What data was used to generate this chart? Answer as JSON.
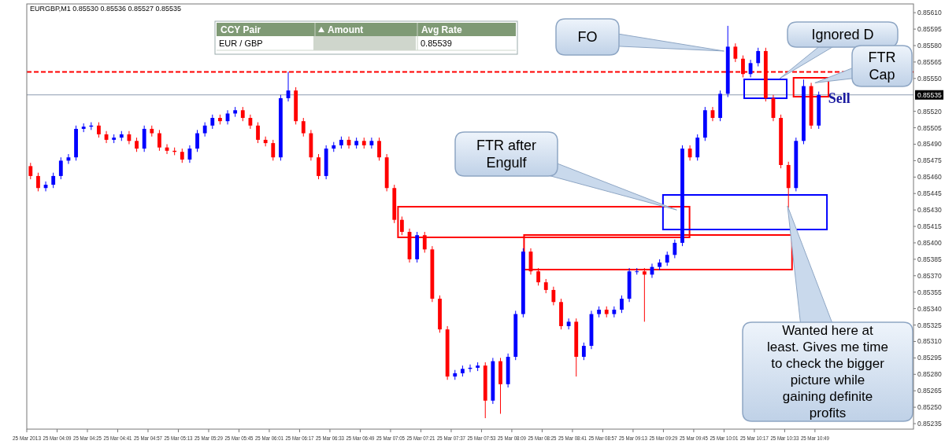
{
  "chart_data": {
    "type": "candlestick",
    "title": "EURGBP,M1  0.85530 0.85536 0.85527 0.85535",
    "x": [
      "2013-03-25T03:55",
      "2013-03-25T03:59",
      "2013-03-25T04:03",
      "2013-03-25T04:07",
      "2013-03-25T04:11",
      "2013-03-25T04:15",
      "2013-03-25T04:19",
      "2013-03-25T04:23",
      "2013-03-25T04:27",
      "2013-03-25T04:31",
      "2013-03-25T04:35",
      "2013-03-25T04:39",
      "2013-03-25T04:43",
      "2013-03-25T04:47",
      "2013-03-25T04:51",
      "2013-03-25T04:55",
      "2013-03-25T04:59",
      "2013-03-25T05:03",
      "2013-03-25T05:07",
      "2013-03-25T05:11",
      "2013-03-25T05:15",
      "2013-03-25T05:19",
      "2013-03-25T05:23",
      "2013-03-25T05:27",
      "2013-03-25T05:31",
      "2013-03-25T05:35",
      "2013-03-25T05:39",
      "2013-03-25T05:43",
      "2013-03-25T05:47",
      "2013-03-25T05:51",
      "2013-03-25T05:55",
      "2013-03-25T05:59",
      "2013-03-25T06:03",
      "2013-03-25T06:07",
      "2013-03-25T06:11",
      "2013-03-25T06:15",
      "2013-03-25T06:19",
      "2013-03-25T06:23",
      "2013-03-25T06:27",
      "2013-03-25T06:31",
      "2013-03-25T06:35",
      "2013-03-25T06:39",
      "2013-03-25T06:43",
      "2013-03-25T06:47",
      "2013-03-25T06:51",
      "2013-03-25T06:55",
      "2013-03-25T06:59",
      "2013-03-25T07:03",
      "2013-03-25T07:07",
      "2013-03-25T07:11",
      "2013-03-25T07:15",
      "2013-03-25T07:19",
      "2013-03-25T07:23",
      "2013-03-25T07:27",
      "2013-03-25T07:31",
      "2013-03-25T07:35",
      "2013-03-25T07:39",
      "2013-03-25T07:43",
      "2013-03-25T07:47",
      "2013-03-25T07:51",
      "2013-03-25T07:55",
      "2013-03-25T07:59",
      "2013-03-25T08:03",
      "2013-03-25T08:07",
      "2013-03-25T08:11",
      "2013-03-25T08:15",
      "2013-03-25T08:19",
      "2013-03-25T08:23",
      "2013-03-25T08:27",
      "2013-03-25T08:31",
      "2013-03-25T08:35",
      "2013-03-25T08:39",
      "2013-03-25T08:43",
      "2013-03-25T08:47",
      "2013-03-25T08:51",
      "2013-03-25T08:55",
      "2013-03-25T08:59",
      "2013-03-25T09:03",
      "2013-03-25T09:07",
      "2013-03-25T09:11",
      "2013-03-25T09:15",
      "2013-03-25T09:19",
      "2013-03-25T09:23",
      "2013-03-25T09:27",
      "2013-03-25T09:31",
      "2013-03-25T09:35",
      "2013-03-25T09:39",
      "2013-03-25T09:43",
      "2013-03-25T09:47",
      "2013-03-25T09:51",
      "2013-03-25T09:55",
      "2013-03-25T09:59",
      "2013-03-25T10:03",
      "2013-03-25T10:07",
      "2013-03-25T10:11",
      "2013-03-25T10:15",
      "2013-03-25T10:19",
      "2013-03-25T10:23",
      "2013-03-25T10:27",
      "2013-03-25T10:31",
      "2013-03-25T10:35",
      "2013-03-25T10:39",
      "2013-03-25T10:43",
      "2013-03-25T10:47",
      "2013-03-25T10:51"
    ],
    "ohlc": [
      [
        0.8547,
        0.85473,
        0.85458,
        0.85461
      ],
      [
        0.85461,
        0.85464,
        0.85447,
        0.8545
      ],
      [
        0.8545,
        0.85456,
        0.85447,
        0.85453
      ],
      [
        0.85453,
        0.85464,
        0.8545,
        0.85461
      ],
      [
        0.85461,
        0.85478,
        0.85458,
        0.85475
      ],
      [
        0.85475,
        0.85481,
        0.85472,
        0.85478
      ],
      [
        0.85478,
        0.85507,
        0.85475,
        0.85504
      ],
      [
        0.85504,
        0.85509,
        0.85501,
        0.85506
      ],
      [
        0.85506,
        0.8551,
        0.85503,
        0.85507
      ],
      [
        0.85507,
        0.8551,
        0.85496,
        0.85499
      ],
      [
        0.85499,
        0.85502,
        0.85491,
        0.85494
      ],
      [
        0.85494,
        0.85499,
        0.85491,
        0.85496
      ],
      [
        0.85496,
        0.85502,
        0.85493,
        0.85499
      ],
      [
        0.85499,
        0.85502,
        0.8549,
        0.85493
      ],
      [
        0.85493,
        0.85496,
        0.85483,
        0.85486
      ],
      [
        0.85486,
        0.85507,
        0.85483,
        0.85504
      ],
      [
        0.85504,
        0.85507,
        0.85497,
        0.855
      ],
      [
        0.855,
        0.85503,
        0.85484,
        0.85487
      ],
      [
        0.85487,
        0.8549,
        0.85481,
        0.85484
      ],
      [
        0.85484,
        0.85487,
        0.8548,
        0.85483
      ],
      [
        0.85483,
        0.85486,
        0.85473,
        0.85476
      ],
      [
        0.85476,
        0.85489,
        0.85473,
        0.85486
      ],
      [
        0.85486,
        0.85503,
        0.85483,
        0.855
      ],
      [
        0.855,
        0.8551,
        0.85497,
        0.85507
      ],
      [
        0.85507,
        0.85517,
        0.85504,
        0.85514
      ],
      [
        0.85514,
        0.85517,
        0.85508,
        0.85511
      ],
      [
        0.85511,
        0.85521,
        0.85508,
        0.85518
      ],
      [
        0.85518,
        0.85524,
        0.85515,
        0.85521
      ],
      [
        0.85521,
        0.85524,
        0.85511,
        0.85514
      ],
      [
        0.85514,
        0.85517,
        0.85504,
        0.85507
      ],
      [
        0.85507,
        0.8551,
        0.85491,
        0.85494
      ],
      [
        0.85494,
        0.85497,
        0.85488,
        0.85491
      ],
      [
        0.85491,
        0.85494,
        0.85475,
        0.85478
      ],
      [
        0.85478,
        0.85535,
        0.85475,
        0.85532
      ],
      [
        0.85532,
        0.85556,
        0.85529,
        0.85539
      ],
      [
        0.85539,
        0.85542,
        0.85508,
        0.85511
      ],
      [
        0.85511,
        0.85514,
        0.85497,
        0.855
      ],
      [
        0.855,
        0.85503,
        0.85475,
        0.85478
      ],
      [
        0.85478,
        0.85481,
        0.85458,
        0.85461
      ],
      [
        0.85461,
        0.85489,
        0.85458,
        0.85486
      ],
      [
        0.85486,
        0.85492,
        0.85483,
        0.85489
      ],
      [
        0.85489,
        0.85497,
        0.85486,
        0.85494
      ],
      [
        0.85494,
        0.85497,
        0.85486,
        0.85489
      ],
      [
        0.85489,
        0.85496,
        0.85486,
        0.85493
      ],
      [
        0.85493,
        0.85496,
        0.85486,
        0.85489
      ],
      [
        0.85489,
        0.85496,
        0.85486,
        0.85493
      ],
      [
        0.85493,
        0.85496,
        0.85475,
        0.85478
      ],
      [
        0.85478,
        0.85481,
        0.85447,
        0.8545
      ],
      [
        0.8545,
        0.85453,
        0.85418,
        0.85421
      ],
      [
        0.85421,
        0.85424,
        0.85407,
        0.8541
      ],
      [
        0.8541,
        0.85413,
        0.85382,
        0.85385
      ],
      [
        0.85385,
        0.8541,
        0.85382,
        0.85407
      ],
      [
        0.85407,
        0.8541,
        0.85391,
        0.85394
      ],
      [
        0.85394,
        0.85397,
        0.85346,
        0.85349
      ],
      [
        0.85349,
        0.85352,
        0.85318,
        0.85321
      ],
      [
        0.85321,
        0.85324,
        0.85275,
        0.85278
      ],
      [
        0.85278,
        0.85284,
        0.85275,
        0.85281
      ],
      [
        0.85281,
        0.85288,
        0.85278,
        0.85285
      ],
      [
        0.85285,
        0.85289,
        0.85282,
        0.85286
      ],
      [
        0.85286,
        0.85291,
        0.85283,
        0.85288
      ],
      [
        0.85288,
        0.85291,
        0.8524,
        0.85256
      ],
      [
        0.85256,
        0.85295,
        0.85253,
        0.85292
      ],
      [
        0.85292,
        0.85295,
        0.85244,
        0.85271
      ],
      [
        0.85271,
        0.85299,
        0.85268,
        0.85296
      ],
      [
        0.85296,
        0.85338,
        0.85293,
        0.85335
      ],
      [
        0.85335,
        0.85395,
        0.85332,
        0.85392
      ],
      [
        0.85392,
        0.85395,
        0.85371,
        0.85374
      ],
      [
        0.85374,
        0.85377,
        0.85361,
        0.85364
      ],
      [
        0.85364,
        0.85367,
        0.85354,
        0.85357
      ],
      [
        0.85357,
        0.8536,
        0.85343,
        0.85346
      ],
      [
        0.85346,
        0.85349,
        0.85321,
        0.85324
      ],
      [
        0.85324,
        0.85331,
        0.85321,
        0.85328
      ],
      [
        0.85328,
        0.85331,
        0.85278,
        0.85296
      ],
      [
        0.85296,
        0.85309,
        0.85293,
        0.85306
      ],
      [
        0.85306,
        0.85338,
        0.85303,
        0.85335
      ],
      [
        0.85335,
        0.85342,
        0.85332,
        0.85339
      ],
      [
        0.85339,
        0.85342,
        0.85332,
        0.85335
      ],
      [
        0.85335,
        0.85342,
        0.85332,
        0.85339
      ],
      [
        0.85339,
        0.85352,
        0.85336,
        0.85349
      ],
      [
        0.85349,
        0.85377,
        0.85346,
        0.85374
      ],
      [
        0.85374,
        0.85377,
        0.85371,
        0.85374
      ],
      [
        0.85374,
        0.85377,
        0.85328,
        0.85371
      ],
      [
        0.85371,
        0.85381,
        0.85368,
        0.85378
      ],
      [
        0.85378,
        0.85385,
        0.85375,
        0.85382
      ],
      [
        0.85382,
        0.85392,
        0.85379,
        0.85389
      ],
      [
        0.85389,
        0.85403,
        0.85386,
        0.854
      ],
      [
        0.854,
        0.85489,
        0.85397,
        0.85486
      ],
      [
        0.85486,
        0.85489,
        0.85475,
        0.85478
      ],
      [
        0.85478,
        0.85499,
        0.85475,
        0.85496
      ],
      [
        0.85496,
        0.85524,
        0.85493,
        0.85521
      ],
      [
        0.85521,
        0.85524,
        0.85511,
        0.85514
      ],
      [
        0.85514,
        0.85539,
        0.85511,
        0.85536
      ],
      [
        0.85536,
        0.85598,
        0.85533,
        0.85579
      ],
      [
        0.85579,
        0.85582,
        0.85565,
        0.85568
      ],
      [
        0.85568,
        0.85571,
        0.85551,
        0.85554
      ],
      [
        0.85554,
        0.85567,
        0.85551,
        0.85564
      ],
      [
        0.85564,
        0.85578,
        0.85561,
        0.85575
      ],
      [
        0.85575,
        0.85578,
        0.85529,
        0.85532
      ],
      [
        0.85532,
        0.85535,
        0.85511,
        0.85514
      ],
      [
        0.85514,
        0.85517,
        0.85468,
        0.85471
      ],
      [
        0.85471,
        0.85474,
        0.85432,
        0.8545
      ],
      [
        0.8545,
        0.85496,
        0.85447,
        0.85493
      ],
      [
        0.85493,
        0.85549,
        0.8549,
        0.85543
      ],
      [
        0.85543,
        0.85546,
        0.85504,
        0.85507
      ],
      [
        0.85507,
        0.85538,
        0.85504,
        0.85535
      ]
    ],
    "colors": [
      "#ff0000",
      "#ff0000",
      "#0000ff",
      "#0000ff",
      "#0000ff",
      "#0000ff",
      "#0000ff",
      "#0000ff",
      "#0000ff",
      "#ff0000",
      "#ff0000",
      "#0000ff",
      "#0000ff",
      "#ff0000",
      "#ff0000",
      "#0000ff",
      "#ff0000",
      "#ff0000",
      "#ff0000",
      "#ff0000",
      "#ff0000",
      "#0000ff",
      "#0000ff",
      "#0000ff",
      "#0000ff",
      "#ff0000",
      "#0000ff",
      "#0000ff",
      "#ff0000",
      "#ff0000",
      "#ff0000",
      "#ff0000",
      "#ff0000",
      "#0000ff",
      "#0000ff",
      "#ff0000",
      "#ff0000",
      "#ff0000",
      "#ff0000",
      "#0000ff",
      "#0000ff",
      "#0000ff",
      "#ff0000",
      "#0000ff",
      "#ff0000",
      "#0000ff",
      "#ff0000",
      "#ff0000",
      "#ff0000",
      "#ff0000",
      "#ff0000",
      "#0000ff",
      "#ff0000",
      "#ff0000",
      "#ff0000",
      "#ff0000",
      "#0000ff",
      "#0000ff",
      "#0000ff",
      "#0000ff",
      "#ff0000",
      "#0000ff",
      "#ff0000",
      "#0000ff",
      "#0000ff",
      "#0000ff",
      "#ff0000",
      "#ff0000",
      "#ff0000",
      "#ff0000",
      "#ff0000",
      "#0000ff",
      "#ff0000",
      "#0000ff",
      "#0000ff",
      "#0000ff",
      "#ff0000",
      "#0000ff",
      "#0000ff",
      "#0000ff",
      "#0000ff",
      "#ff0000",
      "#0000ff",
      "#0000ff",
      "#0000ff",
      "#0000ff",
      "#0000ff",
      "#ff0000",
      "#0000ff",
      "#0000ff",
      "#ff0000",
      "#0000ff",
      "#0000ff",
      "#ff0000",
      "#ff0000",
      "#0000ff",
      "#0000ff",
      "#ff0000",
      "#ff0000",
      "#ff0000",
      "#ff0000",
      "#0000ff",
      "#0000ff",
      "#ff0000",
      "#0000ff"
    ],
    "xlim": [
      "2013-03-25T03:53",
      "2013-03-25T11:41"
    ],
    "xticks": [
      {
        "value": "2013-03-25T03:53",
        "label": "25 Mar 2013"
      },
      {
        "value": "2013-03-25T04:09",
        "label": "25 Mar 04:09"
      },
      {
        "value": "2013-03-25T04:25",
        "label": "25 Mar 04:25"
      },
      {
        "value": "2013-03-25T04:41",
        "label": "25 Mar 04:41"
      },
      {
        "value": "2013-03-25T04:57",
        "label": "25 Mar 04:57"
      },
      {
        "value": "2013-03-25T05:13",
        "label": "25 Mar 05:13"
      },
      {
        "value": "2013-03-25T05:29",
        "label": "25 Mar 05:29"
      },
      {
        "value": "2013-03-25T05:45",
        "label": "25 Mar 05:45"
      },
      {
        "value": "2013-03-25T06:01",
        "label": "25 Mar 06:01"
      },
      {
        "value": "2013-03-25T06:17",
        "label": "25 Mar 06:17"
      },
      {
        "value": "2013-03-25T06:33",
        "label": "25 Mar 06:33"
      },
      {
        "value": "2013-03-25T06:49",
        "label": "25 Mar 06:49"
      },
      {
        "value": "2013-03-25T07:05",
        "label": "25 Mar 07:05"
      },
      {
        "value": "2013-03-25T07:21",
        "label": "25 Mar 07:21"
      },
      {
        "value": "2013-03-25T07:37",
        "label": "25 Mar 07:37"
      },
      {
        "value": "2013-03-25T07:53",
        "label": "25 Mar 07:53"
      },
      {
        "value": "2013-03-25T08:09",
        "label": "25 Mar 08:09"
      },
      {
        "value": "2013-03-25T08:25",
        "label": "25 Mar 08:25"
      },
      {
        "value": "2013-03-25T08:41",
        "label": "25 Mar 08:41"
      },
      {
        "value": "2013-03-25T08:57",
        "label": "25 Mar 08:57"
      },
      {
        "value": "2013-03-25T09:13",
        "label": "25 Mar 09:13"
      },
      {
        "value": "2013-03-25T09:29",
        "label": "25 Mar 09:29"
      },
      {
        "value": "2013-03-25T09:45",
        "label": "25 Mar 09:45"
      },
      {
        "value": "2013-03-25T10:01",
        "label": "25 Mar 10:01"
      },
      {
        "value": "2013-03-25T10:17",
        "label": "25 Mar 10:17"
      },
      {
        "value": "2013-03-25T10:33",
        "label": "25 Mar 10:33"
      },
      {
        "value": "2013-03-25T10:49",
        "label": "25 Mar 10:49"
      }
    ],
    "ylim": [
      0.8523,
      0.85618
    ],
    "yticks": [
      0.85235,
      {
        "value": 0.8525,
        "label": "0.85250"
      },
      0.85265,
      {
        "value": 0.8528,
        "label": "0.85280"
      },
      0.85295,
      {
        "value": 0.8531,
        "label": "0.85310"
      },
      0.85325,
      {
        "value": 0.8534,
        "label": "0.85340"
      },
      0.85355,
      {
        "value": 0.8537,
        "label": "0.85370"
      },
      0.85385,
      {
        "value": 0.854,
        "label": "0.85400"
      },
      0.85415,
      {
        "value": 0.8543,
        "label": "0.85430"
      },
      0.85445,
      {
        "value": 0.8546,
        "label": "0.85460"
      },
      0.85475,
      {
        "value": 0.8549,
        "label": "0.85490"
      },
      0.85505,
      {
        "value": 0.8552,
        "label": "0.85520"
      },
      {
        "value": 0.8555,
        "label": "0.85550"
      },
      0.85565,
      {
        "value": 0.8558,
        "label": "0.85580"
      },
      0.85595,
      {
        "value": 0.8561,
        "label": "0.85610"
      }
    ],
    "ref_lines": [
      {
        "axis": "y",
        "value": 0.85535,
        "label": "0.85535",
        "color": "#8c9bb0",
        "line_style": "solid"
      },
      {
        "axis": "y",
        "value": 0.85556,
        "color": "#ff0000",
        "line_style": "dashed"
      }
    ],
    "annotations": [
      "CCY Pair",
      "Amount",
      "Avg Rate",
      "EUR / GBP",
      "0.85539",
      {
        "text": "FO",
        "x": "2013-03-25T10:01",
        "y": 0.85575
      },
      {
        "text": "FTR after Engulf",
        "x": "2013-03-25T09:36",
        "y": 0.8543
      },
      "Ignored D",
      {
        "text": "FTR Cap",
        "x": "2013-03-25T10:49",
        "y": 0.85546
      },
      "Wanted here at least. Gives me time to check the bigger picture while gaining definite profits",
      {
        "text": "Sell",
        "x": "2013-03-25T10:51",
        "y": 0.85535
      }
    ],
    "grid": false,
    "legend": false
  }
}
